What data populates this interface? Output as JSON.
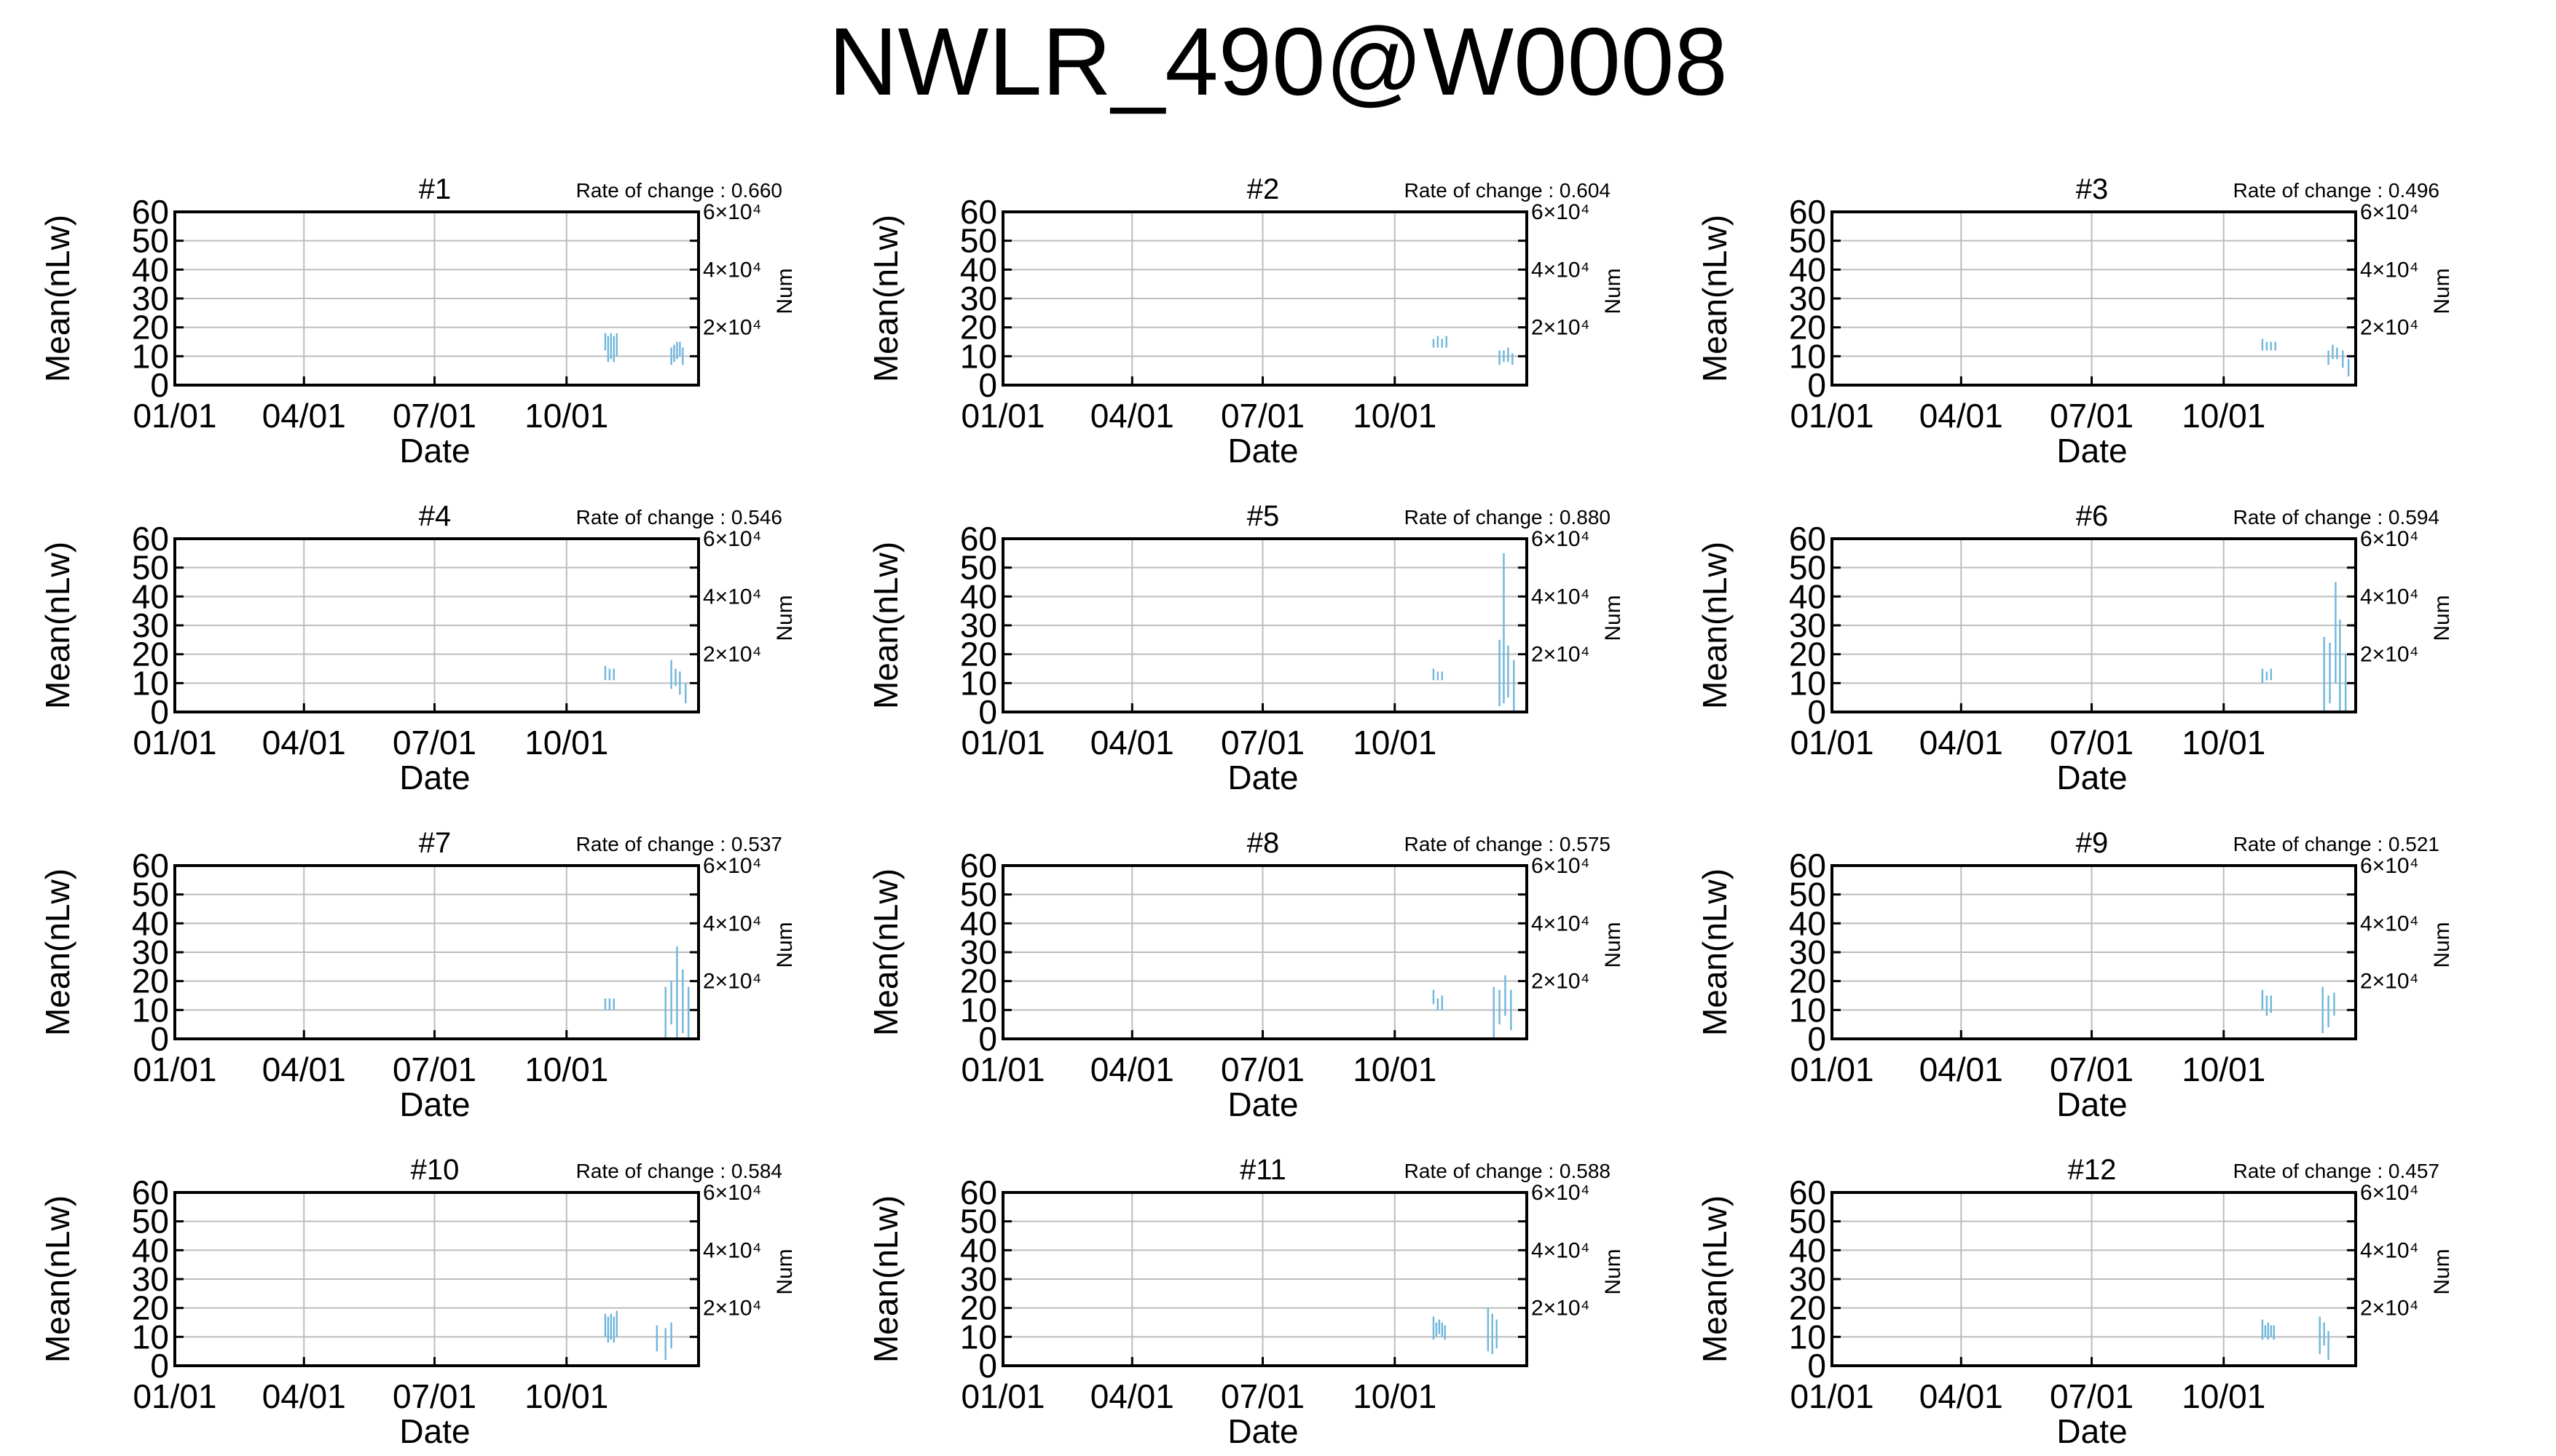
{
  "title": "NWLR_490@W0008",
  "chart_data": {
    "type": "line",
    "panels": [
      {
        "label": "#1",
        "rate_text": "Rate of change : 0.660",
        "lines": [
          [
            300,
            12,
            18
          ],
          [
            302,
            8,
            17
          ],
          [
            304,
            9,
            18
          ],
          [
            306,
            8,
            17
          ],
          [
            308,
            10,
            18
          ],
          [
            346,
            7,
            13
          ],
          [
            348,
            8,
            14
          ],
          [
            350,
            9,
            15
          ],
          [
            352,
            10,
            15
          ],
          [
            354,
            7,
            13
          ]
        ]
      },
      {
        "label": "#2",
        "rate_text": "Rate of change : 0.604",
        "lines": [
          [
            300,
            13,
            16
          ],
          [
            303,
            13,
            17
          ],
          [
            306,
            13,
            16
          ],
          [
            309,
            13,
            17
          ],
          [
            346,
            7,
            12
          ],
          [
            349,
            8,
            12
          ],
          [
            352,
            8,
            13
          ],
          [
            355,
            7,
            11
          ]
        ]
      },
      {
        "label": "#3",
        "rate_text": "Rate of change : 0.496",
        "lines": [
          [
            300,
            12,
            16
          ],
          [
            303,
            12,
            15
          ],
          [
            306,
            12,
            15
          ],
          [
            309,
            12,
            15
          ],
          [
            346,
            7,
            12
          ],
          [
            349,
            9,
            14
          ],
          [
            352,
            9,
            13
          ],
          [
            356,
            6,
            12
          ],
          [
            360,
            3,
            9
          ]
        ]
      },
      {
        "label": "#4",
        "rate_text": "Rate of change : 0.546",
        "lines": [
          [
            300,
            11,
            16
          ],
          [
            303,
            11,
            15
          ],
          [
            306,
            11,
            15
          ],
          [
            346,
            8,
            18
          ],
          [
            349,
            9,
            15
          ],
          [
            352,
            6,
            14
          ],
          [
            356,
            3,
            10
          ]
        ]
      },
      {
        "label": "#5",
        "rate_text": "Rate of change : 0.880",
        "lines": [
          [
            300,
            11,
            15
          ],
          [
            303,
            11,
            14
          ],
          [
            306,
            11,
            14
          ],
          [
            346,
            2,
            25
          ],
          [
            349,
            3,
            55
          ],
          [
            352,
            5,
            23
          ],
          [
            356,
            0,
            18
          ]
        ]
      },
      {
        "label": "#6",
        "rate_text": "Rate of change : 0.594",
        "lines": [
          [
            300,
            10,
            15
          ],
          [
            303,
            11,
            14
          ],
          [
            306,
            11,
            15
          ],
          [
            343,
            0,
            26
          ],
          [
            347,
            3,
            24
          ],
          [
            351,
            10,
            45
          ],
          [
            354,
            0,
            32
          ],
          [
            358,
            0,
            20
          ]
        ]
      },
      {
        "label": "#7",
        "rate_text": "Rate of change : 0.537",
        "lines": [
          [
            300,
            10,
            14
          ],
          [
            303,
            10,
            14
          ],
          [
            306,
            10,
            14
          ],
          [
            342,
            0,
            18
          ],
          [
            346,
            5,
            20
          ],
          [
            350,
            0,
            32
          ],
          [
            354,
            2,
            24
          ],
          [
            358,
            0,
            18
          ]
        ]
      },
      {
        "label": "#8",
        "rate_text": "Rate of change : 0.575",
        "lines": [
          [
            300,
            12,
            17
          ],
          [
            303,
            10,
            14
          ],
          [
            306,
            10,
            15
          ],
          [
            342,
            0,
            18
          ],
          [
            346,
            5,
            17
          ],
          [
            350,
            8,
            22
          ],
          [
            354,
            3,
            17
          ]
        ]
      },
      {
        "label": "#9",
        "rate_text": "Rate of change : 0.521",
        "lines": [
          [
            300,
            10,
            17
          ],
          [
            303,
            8,
            15
          ],
          [
            306,
            9,
            15
          ],
          [
            342,
            2,
            18
          ],
          [
            346,
            4,
            15
          ],
          [
            350,
            8,
            16
          ]
        ]
      },
      {
        "label": "#10",
        "rate_text": "Rate of change : 0.584",
        "lines": [
          [
            300,
            10,
            18
          ],
          [
            302,
            8,
            17
          ],
          [
            304,
            9,
            18
          ],
          [
            306,
            8,
            17
          ],
          [
            308,
            10,
            19
          ],
          [
            336,
            5,
            14
          ],
          [
            342,
            2,
            13
          ],
          [
            346,
            6,
            15
          ]
        ]
      },
      {
        "label": "#11",
        "rate_text": "Rate of change : 0.588",
        "lines": [
          [
            300,
            9,
            17
          ],
          [
            302,
            10,
            15
          ],
          [
            304,
            11,
            16
          ],
          [
            306,
            10,
            15
          ],
          [
            308,
            9,
            14
          ],
          [
            338,
            5,
            20
          ],
          [
            341,
            4,
            18
          ],
          [
            344,
            6,
            16
          ]
        ]
      },
      {
        "label": "#12",
        "rate_text": "Rate of change : 0.457",
        "lines": [
          [
            300,
            9,
            16
          ],
          [
            302,
            10,
            14
          ],
          [
            304,
            9,
            15
          ],
          [
            306,
            10,
            14
          ],
          [
            308,
            9,
            14
          ],
          [
            340,
            4,
            17
          ],
          [
            343,
            7,
            15
          ],
          [
            346,
            2,
            12
          ]
        ]
      }
    ],
    "xlabel": "Date",
    "ylabel": "Mean(nLw)",
    "y2label": "Num",
    "x_ticks": [
      "01/01",
      "04/01",
      "07/01",
      "10/01"
    ],
    "x_tick_values": [
      0,
      90,
      181,
      273
    ],
    "xlim": [
      0,
      365
    ],
    "y_ticks": [
      "0",
      "10",
      "20",
      "30",
      "40",
      "50",
      "60"
    ],
    "ylim": [
      0,
      60
    ],
    "y2_ticks": [
      "2×10⁴",
      "4×10⁴",
      "6×10⁴"
    ],
    "y2_tick_values": [
      20000,
      40000,
      60000
    ],
    "y2lim": [
      0,
      60000
    ],
    "line_color": "#6fb6dc",
    "grid": true
  }
}
